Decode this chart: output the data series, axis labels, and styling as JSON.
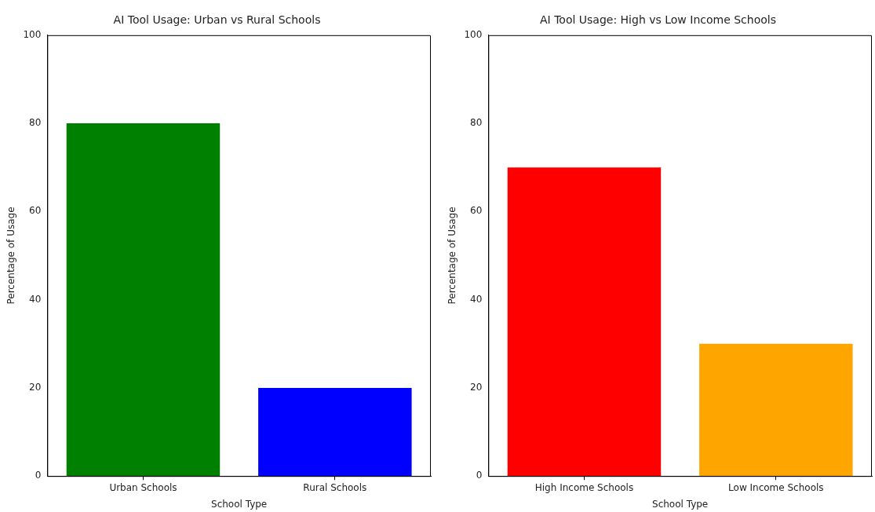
{
  "chart_data": [
    {
      "type": "bar",
      "title": "AI Tool Usage: Urban vs Rural Schools",
      "xlabel": "School Type",
      "ylabel": "Percentage of Usage",
      "categories": [
        "Urban Schools",
        "Rural Schools"
      ],
      "values": [
        80,
        20
      ],
      "colors": [
        "#008000",
        "#0000ff"
      ],
      "ylim": [
        0,
        100
      ],
      "yticks": [
        0,
        20,
        40,
        60,
        80,
        100
      ]
    },
    {
      "type": "bar",
      "title": "AI Tool Usage: High vs Low Income Schools",
      "xlabel": "School Type",
      "ylabel": "Percentage of Usage",
      "categories": [
        "High Income Schools",
        "Low Income Schools"
      ],
      "values": [
        70,
        30
      ],
      "colors": [
        "#ff0000",
        "#ffa500"
      ],
      "ylim": [
        0,
        100
      ],
      "yticks": [
        0,
        20,
        40,
        60,
        80,
        100
      ]
    }
  ]
}
